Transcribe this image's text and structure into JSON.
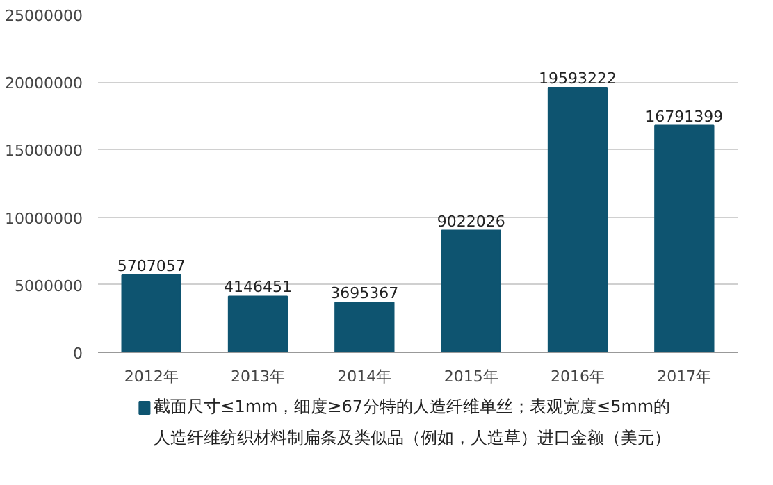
{
  "chart_data": {
    "type": "bar",
    "categories": [
      "2012年",
      "2013年",
      "2014年",
      "2015年",
      "2016年",
      "2017年"
    ],
    "series": [
      {
        "name": "截面尺寸≤1mm，细度≥67分特的人造纤维单丝；表观宽度≤5mm的人造纤维纺织材料制扁条及类似品（例如，人造草）进口金额（美元）",
        "color": "#0e5470",
        "values": [
          5707057,
          4146451,
          3695367,
          9022026,
          19593222,
          16791399
        ]
      }
    ],
    "ylim": [
      0,
      25000000
    ],
    "yticks": [
      0,
      5000000,
      10000000,
      15000000,
      20000000,
      25000000
    ],
    "grid": "y",
    "data_labels": true,
    "legend": "bottom"
  }
}
